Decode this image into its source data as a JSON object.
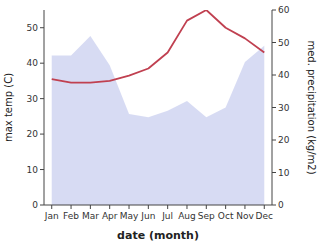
{
  "chart_data": {
    "type": "line",
    "xlabel": "date (month)",
    "ylabel": "max temp (C)",
    "y2label": "med. precipitation (kg/m2)",
    "categories": [
      "Jan",
      "Feb",
      "Mar",
      "Apr",
      "May",
      "Jun",
      "Jul",
      "Aug",
      "Sep",
      "Oct",
      "Nov",
      "Dec"
    ],
    "series": [
      {
        "type": "area",
        "axis": "y2",
        "color": "#b0b8e8",
        "values": [
          46,
          46,
          52,
          43,
          28,
          27,
          29,
          32,
          27,
          30,
          44,
          49
        ]
      },
      {
        "type": "line",
        "color": "#c04050",
        "values": [
          35.5,
          34.5,
          34.5,
          35.0,
          36.5,
          38.5,
          43.0,
          52.0,
          55.0,
          50.0,
          47.0,
          43.0
        ]
      }
    ],
    "ylim": [
      0,
      55
    ],
    "yticks": [
      0,
      10,
      20,
      30,
      40,
      50
    ],
    "y2lim": [
      0,
      60
    ],
    "y2ticks": [
      0,
      10,
      20,
      30,
      40,
      50,
      60
    ]
  }
}
